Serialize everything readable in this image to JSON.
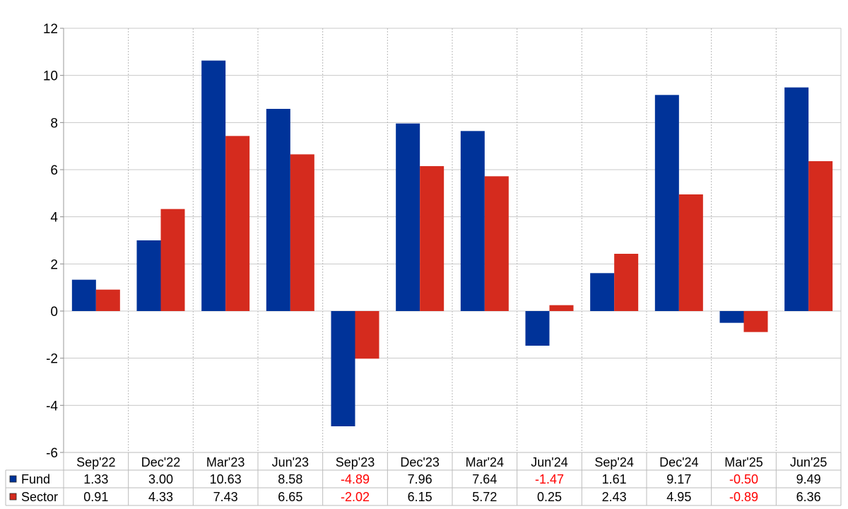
{
  "chart_data": {
    "type": "bar",
    "categories": [
      "Sep'22",
      "Dec'22",
      "Mar'23",
      "Jun'23",
      "Sep'23",
      "Dec'23",
      "Mar'24",
      "Jun'24",
      "Sep'24",
      "Dec'24",
      "Mar'25",
      "Jun'25"
    ],
    "series": [
      {
        "name": "Fund",
        "color": "#003399",
        "values": [
          1.33,
          3.0,
          10.63,
          8.58,
          -4.89,
          7.96,
          7.64,
          -1.47,
          1.61,
          9.17,
          -0.5,
          9.49
        ],
        "labels": [
          "1.33",
          "3.00",
          "10.63",
          "8.58",
          "-4.89",
          "7.96",
          "7.64",
          "-1.47",
          "1.61",
          "9.17",
          "-0.50",
          "9.49"
        ]
      },
      {
        "name": "Sector",
        "color": "#d52b1e",
        "values": [
          0.91,
          4.33,
          7.43,
          6.65,
          -2.02,
          6.15,
          5.72,
          0.25,
          2.43,
          4.95,
          -0.89,
          6.36
        ],
        "labels": [
          "0.91",
          "4.33",
          "7.43",
          "6.65",
          "-2.02",
          "6.15",
          "5.72",
          "0.25",
          "2.43",
          "4.95",
          "-0.89",
          "6.36"
        ]
      }
    ],
    "yticks": [
      "12",
      "10",
      "8",
      "6",
      "4",
      "2",
      "0",
      "-2",
      "-4",
      "-6"
    ],
    "ylim": [
      -6,
      12
    ],
    "grid": true,
    "negative_label_color": "#ff0000",
    "legend": "table-below"
  }
}
